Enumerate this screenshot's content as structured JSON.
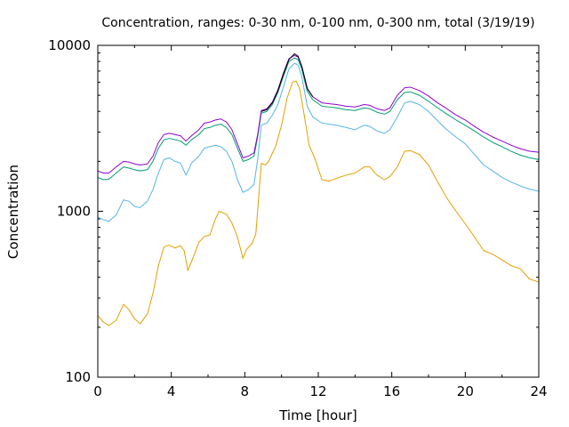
{
  "chart_data": {
    "type": "line",
    "title": "Concentration, ranges: 0-30 nm, 0-100 nm, 0-300 nm, total (3/19/19)",
    "xlabel": "Time [hour]",
    "ylabel": "Concentration",
    "xlim": [
      0,
      24
    ],
    "ylim": [
      100,
      10000
    ],
    "yscale": "log",
    "grid": false,
    "legend": "none",
    "xticks": [
      0,
      4,
      8,
      12,
      16,
      20,
      24
    ],
    "xtick_labels": [
      "0",
      "4",
      "8",
      "12",
      "16",
      "20",
      "24"
    ],
    "yticks": [
      100,
      1000,
      10000
    ],
    "ytick_labels": [
      "100",
      "1000",
      "10000"
    ],
    "series": [
      {
        "color": "#e69f00",
        "points": [
          [
            0,
            235
          ],
          [
            0.3,
            215
          ],
          [
            0.6,
            205
          ],
          [
            1,
            220
          ],
          [
            1.4,
            275
          ],
          [
            1.7,
            255
          ],
          [
            2,
            225
          ],
          [
            2.3,
            210
          ],
          [
            2.7,
            240
          ],
          [
            3,
            320
          ],
          [
            3.3,
            470
          ],
          [
            3.6,
            610
          ],
          [
            3.9,
            625
          ],
          [
            4.2,
            600
          ],
          [
            4.5,
            620
          ],
          [
            4.7,
            580
          ],
          [
            4.9,
            440
          ],
          [
            5.2,
            530
          ],
          [
            5.5,
            650
          ],
          [
            5.8,
            705
          ],
          [
            6.1,
            720
          ],
          [
            6.4,
            900
          ],
          [
            6.6,
            1000
          ],
          [
            7,
            960
          ],
          [
            7.3,
            850
          ],
          [
            7.6,
            700
          ],
          [
            7.9,
            520
          ],
          [
            8.1,
            590
          ],
          [
            8.4,
            640
          ],
          [
            8.6,
            730
          ],
          [
            8.9,
            1950
          ],
          [
            9.1,
            1900
          ],
          [
            9.3,
            2000
          ],
          [
            9.7,
            2500
          ],
          [
            10,
            3300
          ],
          [
            10.3,
            4800
          ],
          [
            10.6,
            6000
          ],
          [
            10.8,
            6100
          ],
          [
            11,
            5400
          ],
          [
            11.2,
            4000
          ],
          [
            11.5,
            2500
          ],
          [
            11.8,
            2100
          ],
          [
            12.2,
            1550
          ],
          [
            12.6,
            1520
          ],
          [
            13,
            1580
          ],
          [
            13.5,
            1650
          ],
          [
            14,
            1700
          ],
          [
            14.5,
            1850
          ],
          [
            14.8,
            1850
          ],
          [
            15.2,
            1650
          ],
          [
            15.6,
            1550
          ],
          [
            15.9,
            1620
          ],
          [
            16.3,
            1850
          ],
          [
            16.7,
            2300
          ],
          [
            17,
            2320
          ],
          [
            17.5,
            2200
          ],
          [
            18,
            1900
          ],
          [
            18.5,
            1500
          ],
          [
            19,
            1200
          ],
          [
            19.5,
            1000
          ],
          [
            20,
            840
          ],
          [
            20.5,
            700
          ],
          [
            21,
            580
          ],
          [
            21.5,
            550
          ],
          [
            22,
            510
          ],
          [
            22.5,
            470
          ],
          [
            23,
            450
          ],
          [
            23.5,
            390
          ],
          [
            24,
            375
          ]
        ]
      },
      {
        "color": "#56b4e9",
        "points": [
          [
            0,
            920
          ],
          [
            0.3,
            890
          ],
          [
            0.6,
            870
          ],
          [
            1,
            950
          ],
          [
            1.4,
            1170
          ],
          [
            1.7,
            1150
          ],
          [
            2,
            1070
          ],
          [
            2.3,
            1050
          ],
          [
            2.7,
            1150
          ],
          [
            3,
            1350
          ],
          [
            3.3,
            1700
          ],
          [
            3.6,
            2050
          ],
          [
            3.9,
            2100
          ],
          [
            4.2,
            2000
          ],
          [
            4.5,
            1950
          ],
          [
            4.8,
            1650
          ],
          [
            5.1,
            1950
          ],
          [
            5.5,
            2150
          ],
          [
            5.8,
            2400
          ],
          [
            6.1,
            2450
          ],
          [
            6.4,
            2500
          ],
          [
            6.7,
            2450
          ],
          [
            7,
            2300
          ],
          [
            7.3,
            2000
          ],
          [
            7.6,
            1550
          ],
          [
            7.9,
            1300
          ],
          [
            8.2,
            1350
          ],
          [
            8.5,
            1450
          ],
          [
            8.7,
            2050
          ],
          [
            8.9,
            3300
          ],
          [
            9.2,
            3400
          ],
          [
            9.5,
            3800
          ],
          [
            9.8,
            4400
          ],
          [
            10.1,
            5600
          ],
          [
            10.4,
            7200
          ],
          [
            10.7,
            7800
          ],
          [
            10.9,
            7600
          ],
          [
            11.1,
            6500
          ],
          [
            11.4,
            4300
          ],
          [
            11.7,
            3700
          ],
          [
            12.2,
            3400
          ],
          [
            12.6,
            3350
          ],
          [
            13,
            3300
          ],
          [
            13.5,
            3200
          ],
          [
            14,
            3100
          ],
          [
            14.5,
            3300
          ],
          [
            14.8,
            3250
          ],
          [
            15.2,
            3050
          ],
          [
            15.6,
            2950
          ],
          [
            15.9,
            3100
          ],
          [
            16.3,
            3700
          ],
          [
            16.7,
            4500
          ],
          [
            17,
            4600
          ],
          [
            17.5,
            4400
          ],
          [
            18,
            4000
          ],
          [
            18.5,
            3500
          ],
          [
            19,
            3100
          ],
          [
            19.5,
            2800
          ],
          [
            20,
            2550
          ],
          [
            20.5,
            2200
          ],
          [
            21,
            1900
          ],
          [
            21.5,
            1750
          ],
          [
            22,
            1600
          ],
          [
            22.5,
            1500
          ],
          [
            23,
            1420
          ],
          [
            23.5,
            1360
          ],
          [
            24,
            1320
          ]
        ]
      },
      {
        "color": "#009e73",
        "points": [
          [
            0,
            1600
          ],
          [
            0.3,
            1550
          ],
          [
            0.6,
            1560
          ],
          [
            1,
            1700
          ],
          [
            1.4,
            1850
          ],
          [
            1.7,
            1820
          ],
          [
            2,
            1780
          ],
          [
            2.3,
            1750
          ],
          [
            2.7,
            1780
          ],
          [
            3,
            2000
          ],
          [
            3.3,
            2400
          ],
          [
            3.6,
            2700
          ],
          [
            3.9,
            2750
          ],
          [
            4.2,
            2700
          ],
          [
            4.5,
            2650
          ],
          [
            4.8,
            2500
          ],
          [
            5.1,
            2700
          ],
          [
            5.5,
            2900
          ],
          [
            5.8,
            3150
          ],
          [
            6.1,
            3200
          ],
          [
            6.4,
            3300
          ],
          [
            6.7,
            3350
          ],
          [
            7,
            3200
          ],
          [
            7.3,
            2900
          ],
          [
            7.6,
            2400
          ],
          [
            7.9,
            2000
          ],
          [
            8.2,
            2050
          ],
          [
            8.5,
            2150
          ],
          [
            8.7,
            2800
          ],
          [
            8.9,
            3900
          ],
          [
            9.2,
            4000
          ],
          [
            9.5,
            4400
          ],
          [
            9.8,
            5200
          ],
          [
            10.1,
            6500
          ],
          [
            10.4,
            8000
          ],
          [
            10.7,
            8400
          ],
          [
            10.9,
            8200
          ],
          [
            11.1,
            7200
          ],
          [
            11.4,
            5300
          ],
          [
            11.7,
            4700
          ],
          [
            12.2,
            4300
          ],
          [
            12.6,
            4250
          ],
          [
            13,
            4200
          ],
          [
            13.5,
            4100
          ],
          [
            14,
            4050
          ],
          [
            14.5,
            4200
          ],
          [
            14.8,
            4150
          ],
          [
            15.2,
            3950
          ],
          [
            15.6,
            3850
          ],
          [
            15.9,
            4000
          ],
          [
            16.3,
            4700
          ],
          [
            16.7,
            5200
          ],
          [
            17,
            5250
          ],
          [
            17.5,
            5000
          ],
          [
            18,
            4600
          ],
          [
            18.5,
            4200
          ],
          [
            19,
            3850
          ],
          [
            19.5,
            3550
          ],
          [
            20,
            3300
          ],
          [
            20.5,
            3050
          ],
          [
            21,
            2800
          ],
          [
            21.5,
            2600
          ],
          [
            22,
            2450
          ],
          [
            22.5,
            2300
          ],
          [
            23,
            2180
          ],
          [
            23.5,
            2100
          ],
          [
            24,
            2050
          ]
        ]
      },
      {
        "color": "#9400d3",
        "points": [
          [
            0,
            1750
          ],
          [
            0.3,
            1700
          ],
          [
            0.6,
            1700
          ],
          [
            1,
            1850
          ],
          [
            1.4,
            2000
          ],
          [
            1.7,
            1980
          ],
          [
            2,
            1930
          ],
          [
            2.3,
            1900
          ],
          [
            2.7,
            1930
          ],
          [
            3,
            2150
          ],
          [
            3.3,
            2600
          ],
          [
            3.6,
            2900
          ],
          [
            3.9,
            2950
          ],
          [
            4.2,
            2900
          ],
          [
            4.5,
            2850
          ],
          [
            4.8,
            2650
          ],
          [
            5.1,
            2850
          ],
          [
            5.5,
            3100
          ],
          [
            5.8,
            3400
          ],
          [
            6.1,
            3450
          ],
          [
            6.4,
            3550
          ],
          [
            6.7,
            3600
          ],
          [
            7,
            3450
          ],
          [
            7.3,
            3100
          ],
          [
            7.6,
            2550
          ],
          [
            7.9,
            2100
          ],
          [
            8.2,
            2150
          ],
          [
            8.5,
            2250
          ],
          [
            8.7,
            2900
          ],
          [
            8.9,
            4050
          ],
          [
            9.2,
            4150
          ],
          [
            9.5,
            4550
          ],
          [
            9.8,
            5400
          ],
          [
            10.1,
            6800
          ],
          [
            10.4,
            8300
          ],
          [
            10.7,
            8700
          ],
          [
            10.9,
            8500
          ],
          [
            11.1,
            7500
          ],
          [
            11.4,
            5500
          ],
          [
            11.7,
            4900
          ],
          [
            12.2,
            4500
          ],
          [
            12.6,
            4450
          ],
          [
            13,
            4400
          ],
          [
            13.5,
            4300
          ],
          [
            14,
            4250
          ],
          [
            14.5,
            4400
          ],
          [
            14.8,
            4350
          ],
          [
            15.2,
            4150
          ],
          [
            15.6,
            4050
          ],
          [
            15.9,
            4200
          ],
          [
            16.3,
            5000
          ],
          [
            16.7,
            5550
          ],
          [
            17,
            5600
          ],
          [
            17.5,
            5350
          ],
          [
            18,
            4950
          ],
          [
            18.5,
            4500
          ],
          [
            19,
            4150
          ],
          [
            19.5,
            3800
          ],
          [
            20,
            3550
          ],
          [
            20.5,
            3250
          ],
          [
            21,
            3000
          ],
          [
            21.5,
            2800
          ],
          [
            22,
            2650
          ],
          [
            22.5,
            2500
          ],
          [
            23,
            2380
          ],
          [
            23.5,
            2300
          ],
          [
            24,
            2270
          ]
        ]
      },
      {
        "color": "#000000",
        "points": [
          [
            8.9,
            4000
          ],
          [
            9.2,
            4100
          ],
          [
            9.5,
            4500
          ],
          [
            9.8,
            5300
          ],
          [
            10.1,
            6700
          ],
          [
            10.4,
            8200
          ],
          [
            10.7,
            8900
          ],
          [
            10.9,
            8600
          ],
          [
            11.1,
            7500
          ],
          [
            11.4,
            5500
          ],
          [
            11.7,
            4900
          ]
        ]
      }
    ]
  }
}
